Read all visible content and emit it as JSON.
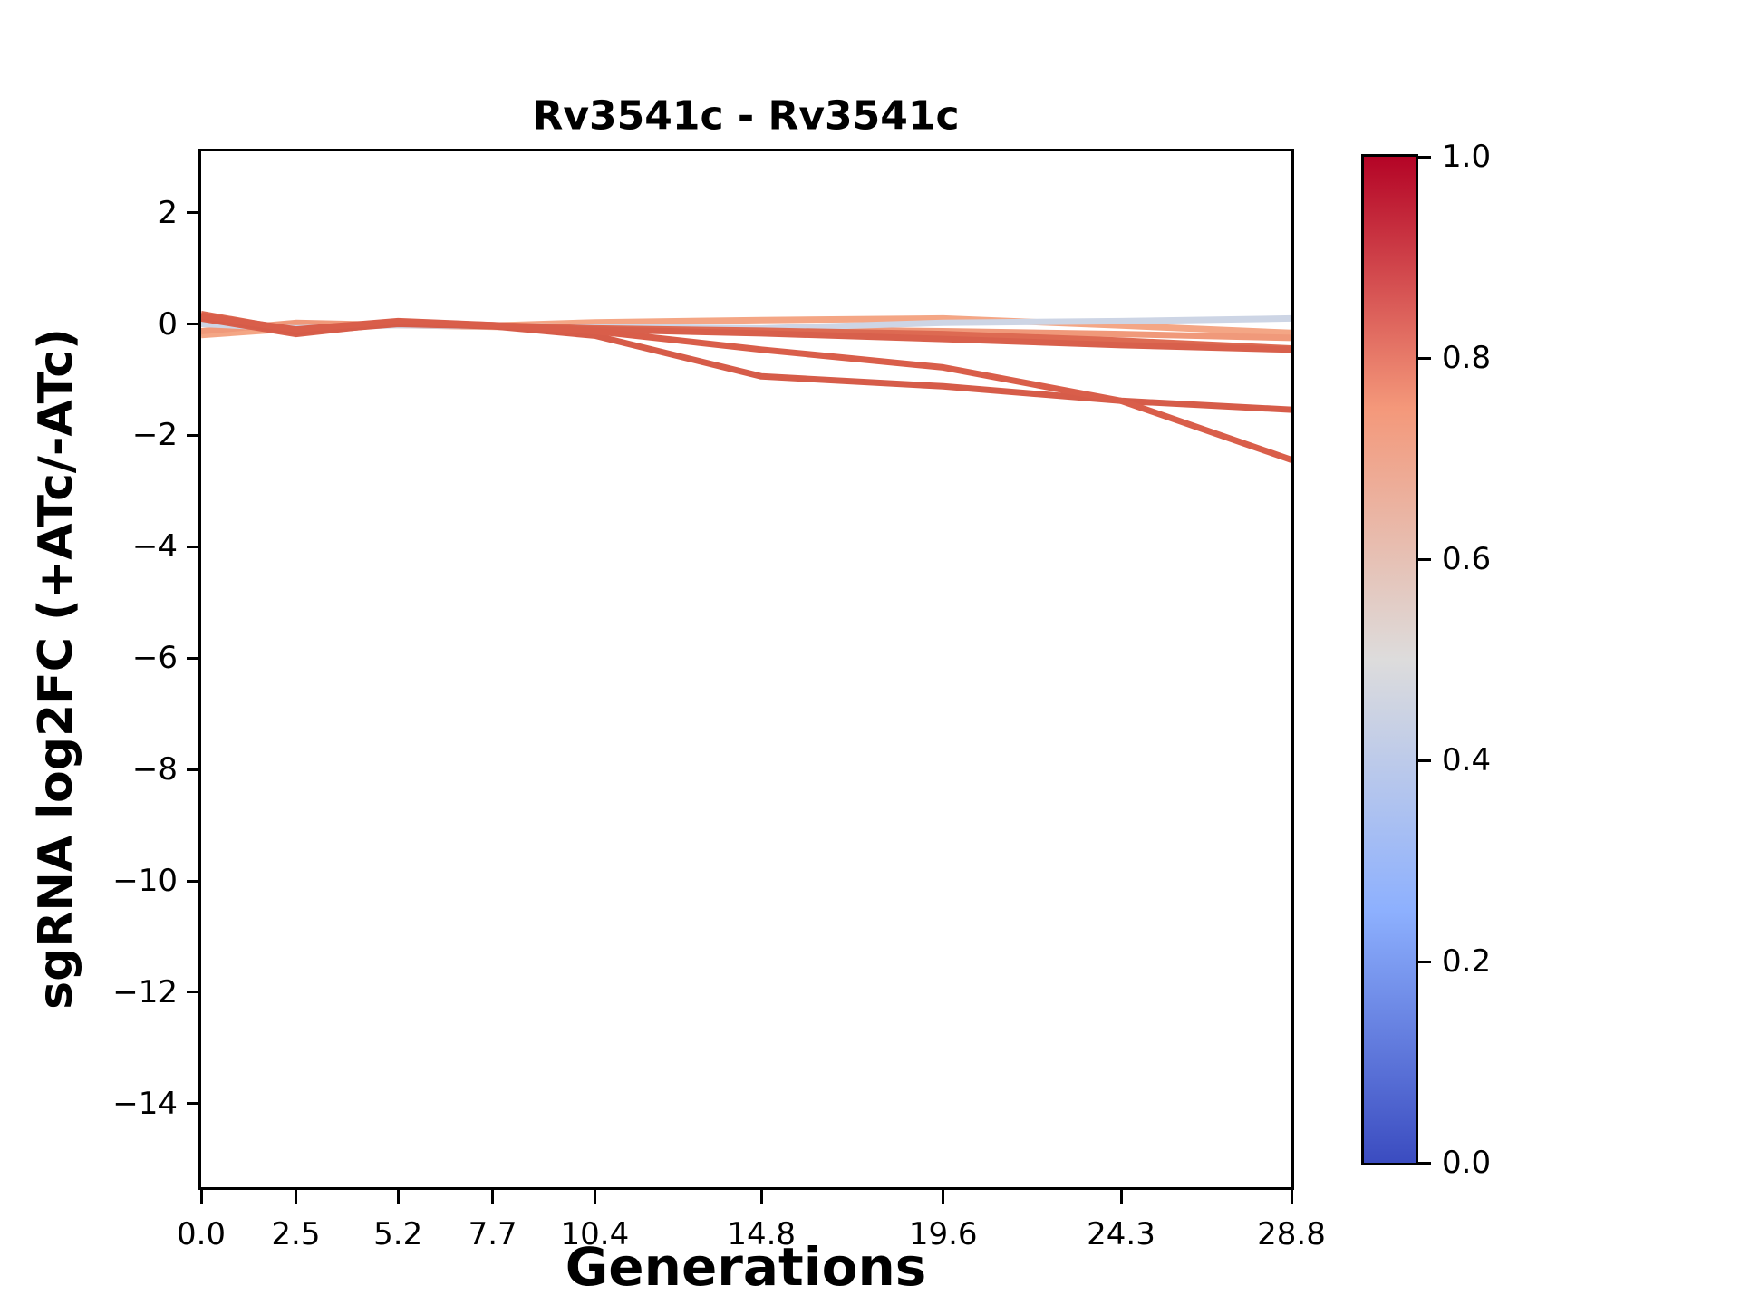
{
  "title": "Rv3541c - Rv3541c",
  "chart_data": {
    "type": "line",
    "title": "Rv3541c - Rv3541c",
    "xlabel": "Generations",
    "ylabel": "sgRNA log2FC (+ATc/-ATc)",
    "grid": false,
    "legend": "none (colorbar only)",
    "xlim": [
      0,
      28.8
    ],
    "ylim": [
      -15.5,
      3.1
    ],
    "x": [
      0.0,
      2.5,
      5.2,
      7.7,
      10.4,
      14.8,
      19.6,
      24.3,
      28.8
    ],
    "xticks": [
      {
        "value": 0.0,
        "label": "0.0"
      },
      {
        "value": 2.5,
        "label": "2.5"
      },
      {
        "value": 5.2,
        "label": "5.2"
      },
      {
        "value": 7.7,
        "label": "7.7"
      },
      {
        "value": 10.4,
        "label": "10.4"
      },
      {
        "value": 14.8,
        "label": "14.8"
      },
      {
        "value": 19.6,
        "label": "19.6"
      },
      {
        "value": 24.3,
        "label": "24.3"
      },
      {
        "value": 28.8,
        "label": "28.8"
      }
    ],
    "yticks": [
      {
        "value": 2,
        "label": "2"
      },
      {
        "value": 0,
        "label": "0"
      },
      {
        "value": -2,
        "label": "−2"
      },
      {
        "value": -4,
        "label": "−4"
      },
      {
        "value": -6,
        "label": "−6"
      },
      {
        "value": -8,
        "label": "−8"
      },
      {
        "value": -10,
        "label": "−10"
      },
      {
        "value": -12,
        "label": "−12"
      },
      {
        "value": -14,
        "label": "−14"
      }
    ],
    "series": [
      {
        "name": "line-2",
        "color": "#f4a685",
        "colormap_value": 0.69,
        "values": [
          -0.2,
          -0.08,
          0.0,
          -0.03,
          0.03,
          0.07,
          0.1,
          -0.03,
          -0.16
        ]
      },
      {
        "name": "line-3",
        "color": "#f0997a",
        "colormap_value": 0.73,
        "values": [
          -0.13,
          0.02,
          -0.02,
          -0.05,
          -0.08,
          -0.1,
          -0.13,
          -0.18,
          -0.25
        ]
      },
      {
        "name": "line-1",
        "color": "#cdd5e5",
        "colormap_value": 0.43,
        "values": [
          0.0,
          -0.08,
          -0.02,
          -0.04,
          -0.05,
          -0.08,
          0.02,
          0.05,
          0.1
        ]
      },
      {
        "name": "line-4",
        "color": "#dd6a52",
        "colormap_value": 0.8,
        "values": [
          0.18,
          -0.12,
          0.03,
          -0.02,
          -0.08,
          -0.12,
          -0.18,
          -0.3,
          -0.44
        ]
      },
      {
        "name": "line-5",
        "color": "#d8604c",
        "colormap_value": 0.83,
        "values": [
          0.1,
          -0.18,
          0.02,
          -0.03,
          -0.1,
          -0.17,
          -0.27,
          -0.38,
          -0.46
        ]
      },
      {
        "name": "line-6",
        "color": "#d65c49",
        "colormap_value": 0.84,
        "values": [
          0.12,
          -0.15,
          0.0,
          -0.04,
          -0.21,
          -0.94,
          -1.12,
          -1.38,
          -1.54
        ]
      },
      {
        "name": "line-7",
        "color": "#d95e4a",
        "colormap_value": 0.85,
        "values": [
          0.15,
          -0.1,
          0.05,
          -0.02,
          -0.13,
          -0.46,
          -0.78,
          -1.38,
          -2.44
        ]
      }
    ],
    "line_width": 7,
    "colorbar": {
      "cmap": "coolwarm",
      "cmap_stops": [
        "#3b4cc0",
        "#8db0fe",
        "#dddcdc",
        "#f4987a",
        "#b40426"
      ],
      "ticks": [
        {
          "value": 1.0,
          "label": "1.0"
        },
        {
          "value": 0.8,
          "label": "0.8"
        },
        {
          "value": 0.6,
          "label": "0.6"
        },
        {
          "value": 0.4,
          "label": "0.4"
        },
        {
          "value": 0.2,
          "label": "0.2"
        },
        {
          "value": 0.0,
          "label": "0.0"
        }
      ]
    }
  }
}
